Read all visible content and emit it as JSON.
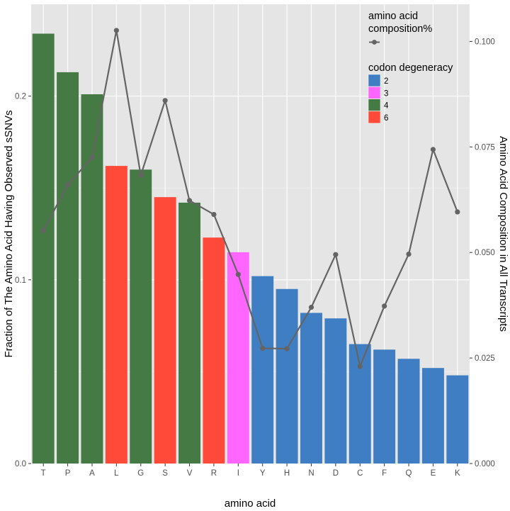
{
  "chart_data": {
    "type": "bar",
    "categories": [
      "T",
      "P",
      "A",
      "L",
      "G",
      "S",
      "V",
      "R",
      "I",
      "Y",
      "H",
      "N",
      "D",
      "C",
      "F",
      "Q",
      "E",
      "K"
    ],
    "series": [
      {
        "values": [
          0.234,
          0.213,
          0.201,
          0.162,
          0.16,
          0.145,
          0.142,
          0.123,
          0.115,
          0.102,
          0.095,
          0.082,
          0.079,
          0.065,
          0.062,
          0.057,
          0.052,
          0.048
        ],
        "axis": "left"
      },
      {
        "name": "amino acid composition%",
        "type": "line",
        "axis": "right",
        "values": [
          0.0552,
          0.066,
          0.0725,
          0.1026,
          0.0683,
          0.086,
          0.0623,
          0.059,
          0.0448,
          0.0273,
          0.0272,
          0.037,
          0.0495,
          0.023,
          0.0373,
          0.0496,
          0.0744,
          0.0596
        ]
      }
    ],
    "codon_degeneracy": [
      4,
      4,
      4,
      6,
      4,
      6,
      4,
      6,
      3,
      2,
      2,
      2,
      2,
      2,
      2,
      2,
      2,
      2
    ],
    "xlabel": "amino acid",
    "ylabel": "Fraction of The Amino Acid Having Observed sSNVs",
    "y2label": "Amino Acid Composition in All Transcripts",
    "ylim": [
      0,
      0.25
    ],
    "y2lim": [
      0,
      0.1088
    ],
    "yticks": [
      "0.0",
      "0.1",
      "0.2"
    ],
    "yticks_values": [
      0,
      0.1,
      0.2
    ],
    "y2ticks": [
      "0.000",
      "0.025",
      "0.050",
      "0.075",
      "0.100"
    ],
    "y2ticks_values": [
      0,
      0.025,
      0.05,
      0.075,
      0.1
    ],
    "grid": true,
    "legend": {
      "position": "top-right",
      "line_title": "amino acid\ncomposition%",
      "fill_title": "codon degeneracy",
      "fill_entries": [
        {
          "label": "2",
          "color": "#3F7EC3"
        },
        {
          "label": "3",
          "color": "#FF66FF"
        },
        {
          "label": "4",
          "color": "#467A45"
        },
        {
          "label": "6",
          "color": "#FF4A3A"
        }
      ]
    },
    "colors": {
      "panel": "#E5E5E5",
      "grid_major": "#FFFFFF",
      "line": "#646464",
      "tick_text": "#4D4D4D"
    }
  }
}
